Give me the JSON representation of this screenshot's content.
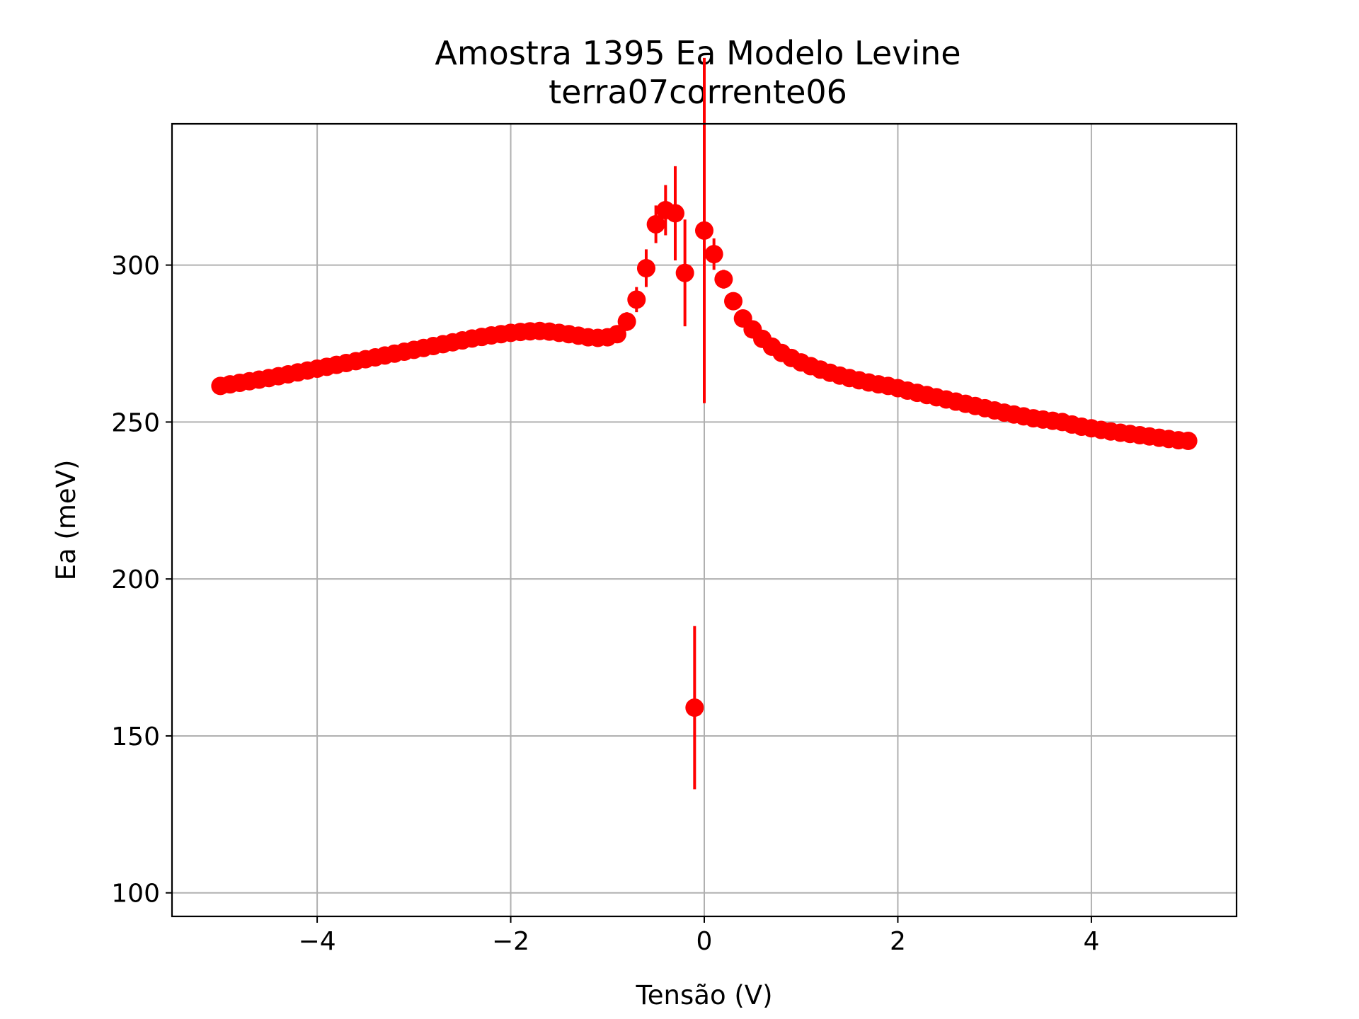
{
  "figure": {
    "title_line1": "Amostra 1395 Ea Modelo Levine",
    "title_line2": "terra07corrente06"
  },
  "chart_data": {
    "type": "scatter",
    "style": "errorbar",
    "title": "Amostra 1395 Ea Modelo Levine\nterra07corrente06",
    "xlabel": "Tensão (V)",
    "ylabel": "Ea (meV)",
    "xlim": [
      -5.5,
      5.5
    ],
    "ylim": [
      92.5,
      345
    ],
    "grid": true,
    "color": "#ff0000",
    "x_ticks": [
      -4,
      -2,
      0,
      2,
      4
    ],
    "x_tick_labels": [
      "−4",
      "−2",
      "0",
      "2",
      "4"
    ],
    "y_ticks": [
      100,
      150,
      200,
      250,
      300
    ],
    "y_tick_labels": [
      "100",
      "150",
      "200",
      "250",
      "300"
    ],
    "series": [
      {
        "x": [
          -5.0,
          -4.9,
          -4.8,
          -4.7,
          -4.6,
          -4.5,
          -4.4,
          -4.3,
          -4.2,
          -4.1,
          -4.0,
          -3.9,
          -3.8,
          -3.7,
          -3.6,
          -3.5,
          -3.4,
          -3.3,
          -3.2,
          -3.1,
          -3.0,
          -2.9,
          -2.8,
          -2.7,
          -2.6,
          -2.5,
          -2.4,
          -2.3,
          -2.2,
          -2.1,
          -2.0,
          -1.9,
          -1.8,
          -1.7,
          -1.6,
          -1.5,
          -1.4,
          -1.3,
          -1.2,
          -1.1,
          -1.0,
          -0.9,
          -0.8,
          -0.7,
          -0.6,
          -0.5,
          -0.4,
          -0.3,
          -0.2,
          -0.1,
          0.0,
          0.1,
          0.2,
          0.3,
          0.4,
          0.5,
          0.6,
          0.7,
          0.8,
          0.9,
          1.0,
          1.1,
          1.2,
          1.3,
          1.4,
          1.5,
          1.6,
          1.7,
          1.8,
          1.9,
          2.0,
          2.1,
          2.2,
          2.3,
          2.4,
          2.5,
          2.6,
          2.7,
          2.8,
          2.9,
          3.0,
          3.1,
          3.2,
          3.3,
          3.4,
          3.5,
          3.6,
          3.7,
          3.8,
          3.9,
          4.0,
          4.1,
          4.2,
          4.3,
          4.4,
          4.5,
          4.6,
          4.7,
          4.8,
          4.9,
          5.0
        ],
        "y": [
          261.5,
          262.0,
          262.5,
          263.0,
          263.5,
          264.0,
          264.6,
          265.2,
          265.8,
          266.4,
          267.0,
          267.6,
          268.2,
          268.8,
          269.4,
          270.0,
          270.6,
          271.2,
          271.8,
          272.4,
          273.0,
          273.6,
          274.2,
          274.8,
          275.4,
          276.0,
          276.6,
          277.1,
          277.6,
          278.0,
          278.4,
          278.7,
          278.9,
          279.0,
          278.8,
          278.4,
          278.0,
          277.5,
          277.0,
          276.8,
          277.0,
          278.0,
          282.0,
          289.0,
          299.0,
          313.0,
          317.5,
          316.5,
          297.5,
          159.0,
          311.0,
          303.5,
          295.5,
          288.5,
          283.0,
          279.5,
          276.5,
          274.0,
          272.0,
          270.4,
          269.0,
          267.8,
          266.7,
          265.7,
          264.8,
          264.0,
          263.3,
          262.6,
          262.0,
          261.5,
          260.8,
          260.0,
          259.3,
          258.6,
          257.9,
          257.2,
          256.5,
          255.8,
          255.1,
          254.4,
          253.7,
          253.0,
          252.4,
          251.8,
          251.2,
          250.8,
          250.4,
          250.0,
          249.2,
          248.5,
          248.0,
          247.5,
          247.0,
          246.6,
          246.2,
          245.8,
          245.4,
          245.0,
          244.6,
          244.2,
          244.0
        ],
        "yerr": [
          1.5,
          1.5,
          1.5,
          1.5,
          1.5,
          1.5,
          1.5,
          1.5,
          1.5,
          1.5,
          1.5,
          1.5,
          1.5,
          1.5,
          1.5,
          1.5,
          1.5,
          1.5,
          1.5,
          1.5,
          1.5,
          1.5,
          1.5,
          1.5,
          1.5,
          1.5,
          1.5,
          1.5,
          1.5,
          1.5,
          1.5,
          1.5,
          1.5,
          1.5,
          1.5,
          1.5,
          1.5,
          1.5,
          1.5,
          1.5,
          1.5,
          2.0,
          3.0,
          4.0,
          6.0,
          6.0,
          8.0,
          15.0,
          17.0,
          26.0,
          55.0,
          5.0,
          3.0,
          2.0,
          1.5,
          1.5,
          1.5,
          1.5,
          1.5,
          1.5,
          1.5,
          1.5,
          1.5,
          1.5,
          1.5,
          1.5,
          1.5,
          1.5,
          1.5,
          1.5,
          1.5,
          1.5,
          1.5,
          1.5,
          1.5,
          1.5,
          1.5,
          1.5,
          1.5,
          1.5,
          1.5,
          1.5,
          1.5,
          1.5,
          1.5,
          1.5,
          1.5,
          1.5,
          1.5,
          1.5,
          1.5,
          1.5,
          1.5,
          1.5,
          1.5,
          1.5,
          1.5,
          1.5,
          1.5,
          1.5,
          1.5
        ]
      }
    ]
  }
}
